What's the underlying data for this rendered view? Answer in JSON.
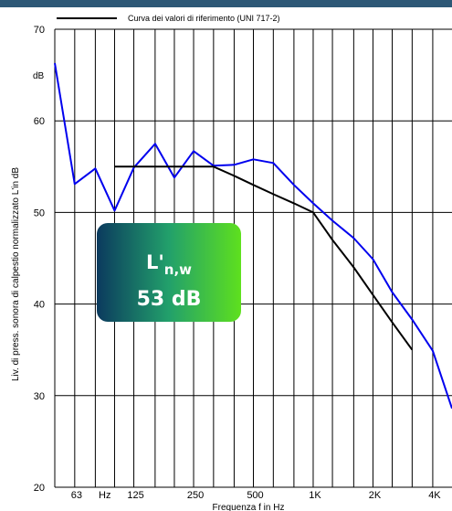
{
  "chart_data": {
    "type": "line",
    "legend": [
      "Curva dei valori di riferimento (UNI 717-2)"
    ],
    "ylabel": "Liv. di press. sonora di calpestio normalizzato L'in dB",
    "y_unit": "dB",
    "xlabel": "Frequenza f in Hz",
    "x_unit": "Hz",
    "ylim": [
      20,
      70
    ],
    "yticks": [
      20,
      30,
      40,
      50,
      60,
      70
    ],
    "xticks": [
      "63",
      "125",
      "250",
      "500",
      "1K",
      "2K",
      "4K"
    ],
    "grid": true,
    "legend_position": "top",
    "series": [
      {
        "color": "#0000ee",
        "x": [
          50,
          63,
          80,
          100,
          125,
          160,
          200,
          250,
          315,
          400,
          500,
          630,
          800,
          1000,
          1250,
          1600,
          2000,
          2500,
          3150,
          4000,
          5000
        ],
        "y": [
          66.3,
          53.1,
          54.8,
          50.2,
          54.9,
          57.5,
          53.8,
          56.7,
          55.1,
          55.2,
          55.8,
          55.4,
          53.0,
          51.0,
          49.1,
          47.2,
          44.9,
          41.3,
          38.3,
          34.9,
          28.6
        ]
      },
      {
        "name": "Curva dei valori di riferimento (UNI 717-2)",
        "color": "#000000",
        "x": [
          100,
          125,
          160,
          200,
          250,
          315,
          400,
          500,
          630,
          800,
          1000,
          1250,
          1600,
          2000,
          2500,
          3150
        ],
        "y": [
          55,
          55,
          55,
          55,
          55,
          55,
          54,
          53,
          52,
          51,
          50,
          47,
          44,
          41,
          38,
          35
        ]
      }
    ]
  },
  "result_box": {
    "symbol": "L'",
    "subscript": "n,w",
    "value": "53 dB",
    "gradient": [
      "#0b3a5e",
      "#22a06b",
      "#5ee01e"
    ]
  }
}
